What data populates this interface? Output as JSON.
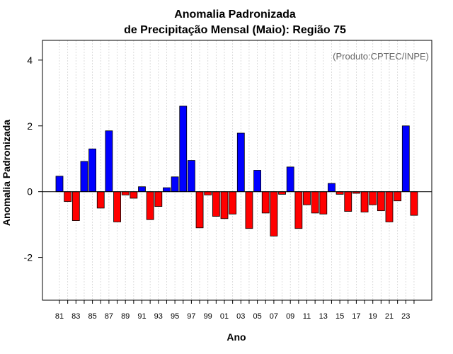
{
  "chart_data": {
    "type": "bar",
    "title_line1": "Anomalia Padronizada",
    "title_line2": "de Precipitação Mensal (Maio): Região 75",
    "credit": "(Produto:CPTEC/INPE)",
    "xlabel": "Ano",
    "ylabel": "Anomalia Padronizada",
    "ylim": [
      -3.3,
      4.6
    ],
    "yticks": [
      -2,
      0,
      2,
      4
    ],
    "grid": true,
    "categories": [
      "1981",
      "1982",
      "1983",
      "1984",
      "1985",
      "1986",
      "1987",
      "1988",
      "1989",
      "1990",
      "1991",
      "1992",
      "1993",
      "1994",
      "1995",
      "1996",
      "1997",
      "1998",
      "1999",
      "2000",
      "2001",
      "2002",
      "2003",
      "2004",
      "2005",
      "2006",
      "2007",
      "2008",
      "2009",
      "2010",
      "2011",
      "2012",
      "2013",
      "2014",
      "2015",
      "2016",
      "2017",
      "2018",
      "2019",
      "2020",
      "2021",
      "2022",
      "2023",
      "2024"
    ],
    "tick_labels": [
      "81",
      "",
      "83",
      "",
      "85",
      "",
      "87",
      "",
      "89",
      "",
      "91",
      "",
      "93",
      "",
      "95",
      "",
      "97",
      "",
      "99",
      "",
      "01",
      "",
      "03",
      "",
      "05",
      "",
      "07",
      "",
      "09",
      "",
      "11",
      "",
      "13",
      "",
      "15",
      "",
      "17",
      "",
      "19",
      "",
      "21",
      "",
      "23",
      ""
    ],
    "values": [
      0.47,
      -0.3,
      -0.88,
      0.92,
      1.3,
      -0.5,
      1.85,
      -0.92,
      -0.1,
      -0.2,
      0.15,
      -0.85,
      -0.45,
      0.12,
      0.45,
      2.6,
      0.95,
      -1.1,
      -0.1,
      -0.75,
      -0.82,
      -0.68,
      1.78,
      -1.12,
      0.65,
      -0.65,
      -1.35,
      -0.08,
      0.75,
      -1.12,
      -0.4,
      -0.65,
      -0.68,
      0.25,
      -0.08,
      -0.6,
      -0.05,
      -0.62,
      -0.4,
      -0.58,
      -0.92,
      -0.28,
      2.0,
      -0.72
    ],
    "colors": {
      "positive": "#0000ff",
      "negative": "#ff0000",
      "bar_border": "#000000",
      "grid": "#d3d3d3",
      "zero_line": "#000000"
    }
  }
}
